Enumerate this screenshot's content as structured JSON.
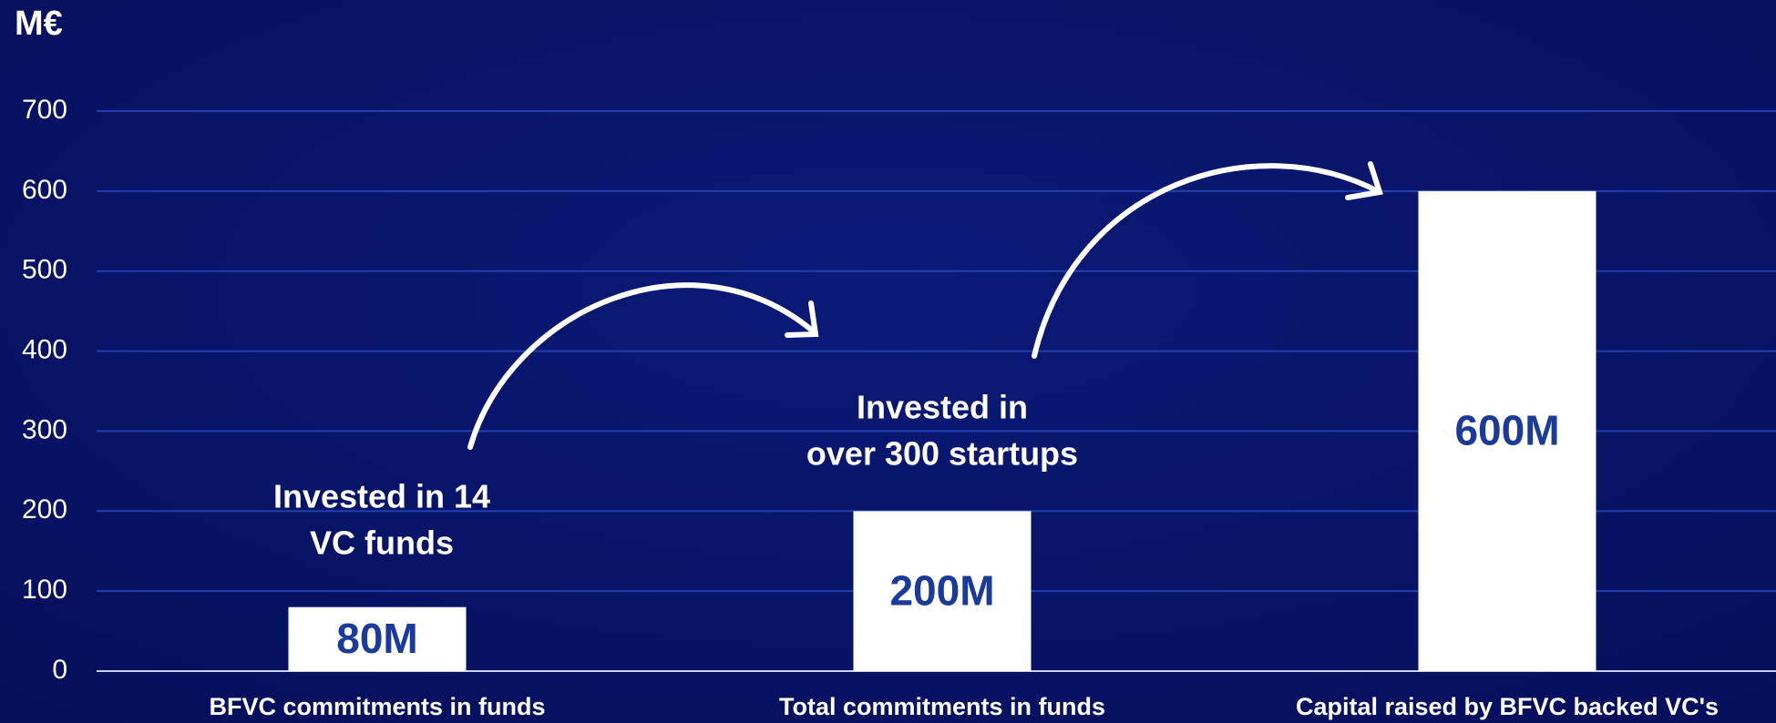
{
  "chart_data": {
    "type": "bar",
    "y_label": "M€",
    "categories": [
      "BFVC commitments in funds",
      "Total commitments in funds",
      "Capital raised by BFVC backed VC's"
    ],
    "values": [
      80,
      200,
      600
    ],
    "value_labels": [
      "80M",
      "200M",
      "600M"
    ],
    "color": "#ffffff",
    "ylim": [
      0,
      700
    ],
    "yticks": [
      0,
      100,
      200,
      300,
      400,
      500,
      600,
      700
    ],
    "grid": true,
    "annotations": [
      [
        "Invested in 14",
        "VC funds"
      ],
      [
        "Invested in",
        "over 300 startups"
      ]
    ]
  }
}
